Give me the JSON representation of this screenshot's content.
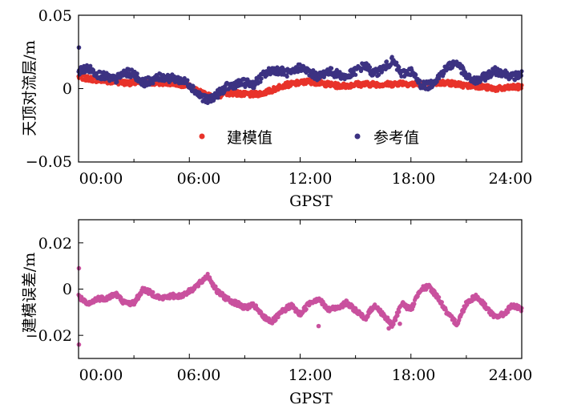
{
  "chart_data": [
    {
      "type": "scatter",
      "xlabel": "GPST",
      "ylabel": "天顶对流层/m",
      "xlim": [
        0,
        24
      ],
      "ylim": [
        -0.05,
        0.05
      ],
      "xticks": [
        {
          "value": 0,
          "label": "00:00"
        },
        {
          "value": 6,
          "label": "06:00"
        },
        {
          "value": 12,
          "label": "12:00"
        },
        {
          "value": 18,
          "label": "18:00"
        },
        {
          "value": 24,
          "label": "24:00"
        }
      ],
      "yticks": [
        {
          "value": 0.05,
          "label": "0.05"
        },
        {
          "value": 0,
          "label": "0"
        },
        {
          "value": -0.05,
          "label": "−0.05"
        }
      ],
      "legend_position": "bottom-center",
      "series": [
        {
          "name": "建模值",
          "color": "#e8332a",
          "x": [
            0,
            0.5,
            1,
            1.5,
            2,
            2.5,
            3,
            3.5,
            4,
            4.5,
            5,
            5.5,
            6,
            6.5,
            7,
            7.5,
            8,
            8.5,
            9,
            9.5,
            10,
            10.5,
            11,
            11.5,
            12,
            12.5,
            13,
            13.5,
            14,
            14.5,
            15,
            15.5,
            16,
            16.5,
            17,
            17.5,
            18,
            18.5,
            19,
            19.5,
            20,
            20.5,
            21,
            21.5,
            22,
            22.5,
            23,
            23.5,
            24
          ],
          "y": [
            0.008,
            0.007,
            0.006,
            0.005,
            0.005,
            0.004,
            0.004,
            0.004,
            0.004,
            0.004,
            0.004,
            0.003,
            0.002,
            -0.002,
            -0.005,
            -0.005,
            -0.003,
            -0.003,
            -0.004,
            -0.004,
            -0.003,
            -0.001,
            0.002,
            0.003,
            0.004,
            0.005,
            0.004,
            0.003,
            0.002,
            0.002,
            0.003,
            0.003,
            0.003,
            0.003,
            0.003,
            0.004,
            0.003,
            0.003,
            0.003,
            0.004,
            0.004,
            0.003,
            0.002,
            0.002,
            0.001,
            0.0,
            0.0,
            0.001,
            0.001
          ]
        },
        {
          "name": "参考值",
          "color": "#3c3282",
          "x": [
            0,
            0.5,
            1,
            1.5,
            2,
            2.5,
            3,
            3.5,
            4,
            4.5,
            5,
            5.5,
            6,
            6.5,
            7,
            7.5,
            8,
            8.5,
            9,
            9.5,
            10,
            10.5,
            11,
            11.5,
            12,
            12.5,
            13,
            13.5,
            14,
            14.5,
            15,
            15.5,
            16,
            16.5,
            17,
            17.5,
            18,
            18.5,
            19,
            19.5,
            20,
            20.5,
            21,
            21.5,
            22,
            22.5,
            23,
            23.5,
            24
          ],
          "y": [
            0.012,
            0.014,
            0.01,
            0.008,
            0.006,
            0.011,
            0.01,
            0.004,
            0.006,
            0.008,
            0.007,
            0.006,
            0.003,
            -0.004,
            -0.008,
            -0.004,
            0.001,
            0.003,
            0.004,
            0.003,
            0.009,
            0.013,
            0.012,
            0.01,
            0.015,
            0.011,
            0.008,
            0.012,
            0.01,
            0.008,
            0.012,
            0.016,
            0.01,
            0.014,
            0.019,
            0.01,
            0.012,
            0.003,
            0.002,
            0.008,
            0.015,
            0.018,
            0.008,
            0.005,
            0.008,
            0.012,
            0.011,
            0.008,
            0.01
          ]
        }
      ]
    },
    {
      "type": "scatter",
      "xlabel": "GPST",
      "ylabel": "建模误差/m",
      "xlim": [
        0,
        24
      ],
      "ylim": [
        -0.03,
        0.03
      ],
      "xticks": [
        {
          "value": 0,
          "label": "00:00"
        },
        {
          "value": 6,
          "label": "06:00"
        },
        {
          "value": 12,
          "label": "12:00"
        },
        {
          "value": 18,
          "label": "18:00"
        },
        {
          "value": 24,
          "label": "24:00"
        }
      ],
      "yticks": [
        {
          "value": 0.02,
          "label": "0.02"
        },
        {
          "value": 0,
          "label": "0"
        },
        {
          "value": -0.02,
          "label": "−0.02"
        }
      ],
      "series": [
        {
          "color": "#c9519e",
          "x": [
            0,
            0.5,
            1,
            1.5,
            2,
            2.5,
            3,
            3.5,
            4,
            4.5,
            5,
            5.5,
            6,
            6.5,
            7,
            7.5,
            8,
            8.5,
            9,
            9.5,
            10,
            10.5,
            11,
            11.5,
            12,
            12.5,
            13,
            13.5,
            14,
            14.5,
            15,
            15.5,
            16,
            16.5,
            17,
            17.5,
            18,
            18.5,
            19,
            19.5,
            20,
            20.5,
            21,
            21.5,
            22,
            22.5,
            23,
            23.5,
            24
          ],
          "y": [
            -0.003,
            -0.007,
            -0.004,
            -0.004,
            -0.002,
            -0.006,
            -0.006,
            0.0,
            -0.002,
            -0.004,
            -0.003,
            -0.003,
            -0.001,
            0.002,
            0.006,
            -0.001,
            -0.004,
            -0.006,
            -0.008,
            -0.007,
            -0.012,
            -0.014,
            -0.01,
            -0.007,
            -0.011,
            -0.006,
            -0.004,
            -0.009,
            -0.008,
            -0.006,
            -0.009,
            -0.013,
            -0.007,
            -0.011,
            -0.016,
            -0.006,
            -0.009,
            0.0,
            0.001,
            -0.004,
            -0.011,
            -0.015,
            -0.006,
            -0.003,
            -0.007,
            -0.012,
            -0.011,
            -0.007,
            -0.009
          ]
        }
      ]
    }
  ],
  "outliers": {
    "top_ref": [
      [
        0.02,
        0.028
      ]
    ],
    "bottom": [
      [
        0.02,
        0.009
      ],
      [
        0.02,
        -0.024
      ],
      [
        16.8,
        -0.017
      ],
      [
        17.4,
        -0.015
      ],
      [
        13.0,
        -0.016
      ]
    ]
  }
}
